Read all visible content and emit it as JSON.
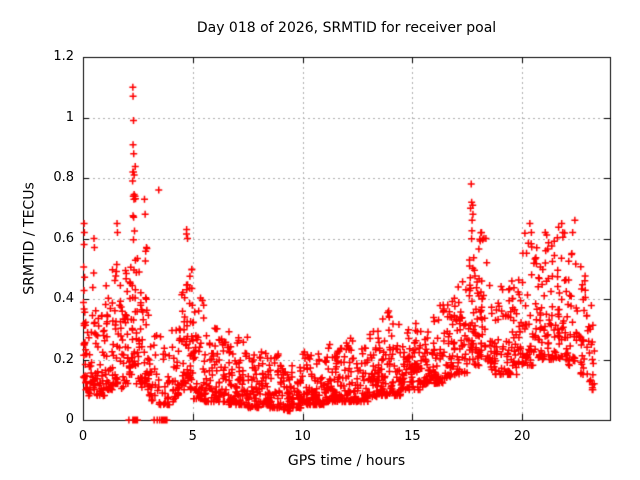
{
  "title": "Day 018 of 2026, SRMTID for receiver poal",
  "chart_data": {
    "type": "scatter",
    "title": "Day 018 of 2026, SRMTID for receiver poal",
    "xlabel": "GPS time / hours",
    "ylabel": "SRMTID / TECUs",
    "xlim": [
      0,
      24
    ],
    "ylim": [
      0,
      1.2
    ],
    "xticks": [
      0,
      5,
      10,
      15,
      20
    ],
    "xtick_labels": [
      "0",
      "5",
      "10",
      "15",
      "20"
    ],
    "yticks": [
      0,
      0.2,
      0.4,
      0.6,
      0.8,
      1,
      1.2
    ],
    "ytick_labels": [
      "0",
      "0.2",
      "0.4",
      "0.6",
      "0.8",
      "1",
      "1.2"
    ],
    "grid": true,
    "legend": "none",
    "marker": {
      "shape": "plus",
      "color": "#ff0000",
      "size": 7
    },
    "colors": {
      "marker": "#ff0000",
      "grid": "#b0b0b0",
      "border": "#000000",
      "background": "#ffffff",
      "text": "#000000"
    },
    "series_name": "SRMTID",
    "density_bins": [
      [
        0.02,
        0.1,
        18,
        0.14,
        0.55,
        2.0
      ],
      [
        0.1,
        0.22,
        14,
        0.1,
        0.35,
        2.0
      ],
      [
        0.25,
        0.4,
        16,
        0.08,
        0.3,
        2.0
      ],
      [
        0.42,
        0.6,
        20,
        0.1,
        0.6,
        2.3
      ],
      [
        0.62,
        0.8,
        16,
        0.08,
        0.35,
        2.0
      ],
      [
        0.82,
        1.0,
        18,
        0.08,
        0.38,
        2.0
      ],
      [
        1.02,
        1.18,
        20,
        0.1,
        0.45,
        2.2
      ],
      [
        1.22,
        1.4,
        18,
        0.1,
        0.5,
        2.2
      ],
      [
        1.45,
        1.62,
        20,
        0.12,
        0.63,
        2.3
      ],
      [
        1.65,
        1.85,
        18,
        0.1,
        0.45,
        2.0
      ],
      [
        1.88,
        2.05,
        18,
        0.12,
        0.5,
        2.2
      ],
      [
        2.1,
        2.22,
        16,
        0.15,
        0.55,
        2.0
      ],
      [
        2.24,
        2.4,
        26,
        0.18,
        0.85,
        1.8
      ],
      [
        2.42,
        2.58,
        16,
        0.12,
        0.55,
        2.0
      ],
      [
        2.6,
        2.75,
        14,
        0.1,
        0.45,
        2.0
      ],
      [
        2.78,
        2.92,
        18,
        0.12,
        0.62,
        2.2
      ],
      [
        2.95,
        3.1,
        16,
        0.08,
        0.45,
        2.0
      ],
      [
        3.12,
        3.3,
        12,
        0.06,
        0.32,
        2.0
      ],
      [
        3.35,
        3.55,
        10,
        0.05,
        0.3,
        2.0
      ],
      [
        3.58,
        3.8,
        10,
        0.05,
        0.25,
        2.0
      ],
      [
        3.82,
        4.0,
        12,
        0.05,
        0.28,
        2.0
      ],
      [
        4.05,
        4.25,
        16,
        0.06,
        0.32,
        2.0
      ],
      [
        4.28,
        4.45,
        16,
        0.08,
        0.35,
        2.0
      ],
      [
        4.5,
        4.65,
        18,
        0.1,
        0.48,
        2.0
      ],
      [
        4.68,
        4.82,
        20,
        0.12,
        0.62,
        2.2
      ],
      [
        4.85,
        5.0,
        20,
        0.1,
        0.5,
        2.0
      ],
      [
        5.0,
        5.5,
        42,
        0.07,
        0.42,
        2.4
      ],
      [
        5.5,
        6.0,
        42,
        0.06,
        0.28,
        2.0
      ],
      [
        6.0,
        6.5,
        42,
        0.06,
        0.31,
        2.1
      ],
      [
        6.5,
        7.0,
        42,
        0.05,
        0.3,
        2.1
      ],
      [
        7.0,
        7.5,
        42,
        0.05,
        0.28,
        2.0
      ],
      [
        7.5,
        8.0,
        42,
        0.04,
        0.22,
        2.0
      ],
      [
        8.0,
        8.5,
        42,
        0.05,
        0.24,
        2.0
      ],
      [
        8.5,
        9.0,
        42,
        0.04,
        0.22,
        2.0
      ],
      [
        9.0,
        9.5,
        42,
        0.03,
        0.18,
        1.8
      ],
      [
        9.5,
        10.0,
        42,
        0.04,
        0.18,
        1.8
      ],
      [
        10.0,
        10.5,
        42,
        0.05,
        0.24,
        2.0
      ],
      [
        10.5,
        11.0,
        42,
        0.05,
        0.22,
        2.0
      ],
      [
        11.0,
        11.5,
        42,
        0.06,
        0.28,
        2.0
      ],
      [
        11.5,
        12.0,
        42,
        0.06,
        0.25,
        2.0
      ],
      [
        12.0,
        12.5,
        42,
        0.06,
        0.28,
        2.0
      ],
      [
        12.5,
        13.0,
        42,
        0.06,
        0.25,
        2.0
      ],
      [
        13.0,
        13.5,
        42,
        0.07,
        0.3,
        2.0
      ],
      [
        13.5,
        14.0,
        44,
        0.08,
        0.37,
        2.2
      ],
      [
        14.0,
        14.5,
        42,
        0.08,
        0.32,
        2.0
      ],
      [
        14.5,
        15.0,
        42,
        0.1,
        0.3,
        1.8
      ],
      [
        15.0,
        15.5,
        40,
        0.1,
        0.32,
        1.8
      ],
      [
        15.5,
        16.0,
        40,
        0.12,
        0.35,
        1.8
      ],
      [
        16.0,
        16.5,
        40,
        0.12,
        0.38,
        1.9
      ],
      [
        16.5,
        17.0,
        40,
        0.14,
        0.42,
        1.9
      ],
      [
        17.0,
        17.5,
        38,
        0.15,
        0.48,
        1.9
      ],
      [
        17.55,
        17.8,
        30,
        0.2,
        0.75,
        1.7
      ],
      [
        17.8,
        18.0,
        20,
        0.18,
        0.5,
        1.9
      ],
      [
        18.0,
        18.45,
        38,
        0.18,
        0.62,
        2.0
      ],
      [
        18.45,
        19.0,
        38,
        0.15,
        0.48,
        1.9
      ],
      [
        19.0,
        19.5,
        38,
        0.15,
        0.45,
        1.9
      ],
      [
        19.5,
        20.0,
        38,
        0.15,
        0.48,
        1.9
      ],
      [
        20.0,
        20.5,
        38,
        0.18,
        0.64,
        2.0
      ],
      [
        20.5,
        21.0,
        38,
        0.2,
        0.58,
        1.9
      ],
      [
        21.0,
        21.5,
        38,
        0.2,
        0.62,
        1.9
      ],
      [
        21.5,
        22.0,
        38,
        0.2,
        0.65,
        1.9
      ],
      [
        22.0,
        22.5,
        36,
        0.18,
        0.6,
        1.9
      ],
      [
        22.5,
        23.0,
        30,
        0.15,
        0.55,
        1.9
      ],
      [
        23.0,
        23.3,
        14,
        0.1,
        0.38,
        1.8
      ]
    ],
    "highlight_points": [
      [
        0.05,
        0.65
      ],
      [
        0.06,
        0.62
      ],
      [
        0.05,
        0.58
      ],
      [
        0.5,
        0.6
      ],
      [
        0.52,
        0.57
      ],
      [
        1.55,
        0.65
      ],
      [
        1.57,
        0.62
      ],
      [
        2.27,
        1.1
      ],
      [
        2.28,
        1.07
      ],
      [
        2.3,
        0.99
      ],
      [
        2.28,
        0.91
      ],
      [
        2.31,
        0.88
      ],
      [
        2.27,
        0.82
      ],
      [
        2.3,
        0.82
      ],
      [
        2.33,
        0.81
      ],
      [
        2.26,
        0.79
      ],
      [
        2.29,
        0.74
      ],
      [
        2.32,
        0.73
      ],
      [
        2.8,
        0.73
      ],
      [
        2.83,
        0.68
      ],
      [
        3.45,
        0.76
      ],
      [
        4.72,
        0.63
      ],
      [
        4.76,
        0.6
      ],
      [
        13.92,
        0.36
      ],
      [
        13.95,
        0.34
      ],
      [
        17.68,
        0.78
      ],
      [
        17.7,
        0.72
      ],
      [
        17.65,
        0.7
      ],
      [
        17.72,
        0.66
      ],
      [
        18.15,
        0.62
      ],
      [
        18.35,
        0.6
      ],
      [
        20.35,
        0.65
      ],
      [
        20.42,
        0.62
      ],
      [
        21.05,
        0.62
      ],
      [
        21.8,
        0.65
      ],
      [
        21.85,
        0.62
      ],
      [
        22.3,
        0.62
      ],
      [
        22.4,
        0.66
      ],
      [
        23.1,
        0.3
      ],
      [
        23.15,
        0.25
      ],
      [
        23.2,
        0.2
      ],
      [
        23.22,
        0.15
      ],
      [
        23.28,
        0.12
      ]
    ],
    "baseline_points_x": [
      2.09,
      2.27,
      2.3,
      2.33,
      2.36,
      2.39,
      2.42,
      2.45,
      2.48,
      3.24,
      3.38,
      3.49,
      3.58,
      3.62,
      3.66,
      3.7,
      3.74,
      3.78,
      3.82
    ]
  }
}
